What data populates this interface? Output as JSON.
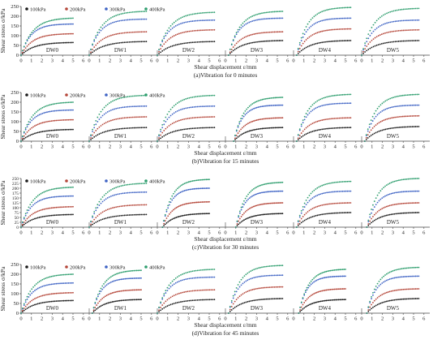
{
  "colors": {
    "100kPa": "#1a1a1a",
    "200kPa": "#b5473a",
    "300kPa": "#3e63c4",
    "400kPa": "#2e9e6e"
  },
  "chart_data": [
    {
      "type": "scatter",
      "ylabel": "Shear stress σ/kPa",
      "xlabel": "Shear displacement ε/mm",
      "caption": "(a)Vibration for 0 minutes",
      "legend": [
        "100kPa",
        "200kPa",
        "300kPa",
        "400kPa"
      ],
      "legend_position": "top-left",
      "ylim": [
        0,
        250
      ],
      "yticks": [
        0,
        50,
        100,
        150,
        200,
        250
      ],
      "xlim": [
        0,
        6
      ],
      "xticks": [
        0,
        1,
        2,
        3,
        4,
        5,
        6
      ],
      "panels": [
        {
          "label": "DW0",
          "offset": 0.0,
          "end": 5.0,
          "peaks": {
            "100kPa": 65,
            "200kPa": 110,
            "300kPa": 160,
            "400kPa": 190
          }
        },
        {
          "label": "DW1",
          "offset": 0.0,
          "end": 5.5,
          "peaks": {
            "100kPa": 70,
            "200kPa": 120,
            "300kPa": 185,
            "400kPa": 225
          }
        },
        {
          "label": "DW2",
          "offset": 0.0,
          "end": 5.5,
          "peaks": {
            "100kPa": 70,
            "200kPa": 130,
            "300kPa": 180,
            "400kPa": 220
          }
        },
        {
          "label": "DW3",
          "offset": 0.3,
          "end": 5.5,
          "peaks": {
            "100kPa": 75,
            "200kPa": 120,
            "300kPa": 190,
            "400kPa": 225
          }
        },
        {
          "label": "DW4",
          "offset": 0.3,
          "end": 5.5,
          "peaks": {
            "100kPa": 75,
            "200kPa": 135,
            "300kPa": 190,
            "400kPa": 245
          }
        },
        {
          "label": "DW5",
          "offset": 0.0,
          "end": 5.5,
          "peaks": {
            "100kPa": 75,
            "200kPa": 130,
            "300kPa": 180,
            "400kPa": 240
          }
        }
      ]
    },
    {
      "type": "scatter",
      "ylabel": "Shear stress σ/kPa",
      "xlabel": "Shear displacement ε/mm",
      "caption": "(b)Vibration for 15 minutes",
      "legend": [
        "100kPa",
        "200kPa",
        "300kPa",
        "400kPa"
      ],
      "legend_position": "top-left",
      "ylim": [
        0,
        250
      ],
      "yticks": [
        0,
        50,
        100,
        150,
        200,
        250
      ],
      "xlim": [
        0,
        6
      ],
      "xticks": [
        0,
        1,
        2,
        3,
        4,
        5,
        6
      ],
      "panels": [
        {
          "label": "DW0",
          "offset": 0.0,
          "end": 5.0,
          "peaks": {
            "100kPa": 60,
            "200kPa": 110,
            "300kPa": 160,
            "400kPa": 200
          }
        },
        {
          "label": "DW1",
          "offset": 0.0,
          "end": 5.5,
          "peaks": {
            "100kPa": 70,
            "200kPa": 125,
            "300kPa": 180,
            "400kPa": 235
          }
        },
        {
          "label": "DW2",
          "offset": 0.0,
          "end": 5.5,
          "peaks": {
            "100kPa": 70,
            "200kPa": 125,
            "300kPa": 180,
            "400kPa": 235
          }
        },
        {
          "label": "DW3",
          "offset": 0.8,
          "end": 5.5,
          "peaks": {
            "100kPa": 70,
            "200kPa": 120,
            "300kPa": 185,
            "400kPa": 225
          }
        },
        {
          "label": "DW4",
          "offset": 0.3,
          "end": 5.5,
          "peaks": {
            "100kPa": 70,
            "200kPa": 120,
            "300kPa": 195,
            "400kPa": 240
          }
        },
        {
          "label": "DW5",
          "offset": 0.3,
          "end": 5.5,
          "peaks": {
            "100kPa": 75,
            "200kPa": 130,
            "300kPa": 185,
            "400kPa": 240
          }
        }
      ]
    },
    {
      "type": "scatter",
      "ylabel": "Shear stress σ/kPa",
      "xlabel": "Shear displacement ε/mm",
      "caption": "(c)Vibration for 30 minutes",
      "legend": [
        "100kPa",
        "200kPa",
        "300kPa",
        "400kPa"
      ],
      "legend_position": "top-left",
      "ylim": [
        0,
        250
      ],
      "yticks": [
        0,
        25,
        50,
        75,
        100,
        125,
        150,
        175,
        200,
        225,
        250
      ],
      "xlim": [
        0,
        6
      ],
      "xticks": [
        0,
        1,
        2,
        3,
        4,
        5,
        6
      ],
      "panels": [
        {
          "label": "DW0",
          "offset": 0.0,
          "end": 5.0,
          "peaks": {
            "100kPa": 65,
            "200kPa": 105,
            "300kPa": 160,
            "400kPa": 205
          }
        },
        {
          "label": "DW1",
          "offset": 0.0,
          "end": 5.5,
          "peaks": {
            "100kPa": 65,
            "200kPa": 115,
            "300kPa": 180,
            "400kPa": 225
          }
        },
        {
          "label": "DW2",
          "offset": 0.5,
          "end": 5.0,
          "peaks": {
            "100kPa": 70,
            "200kPa": 130,
            "300kPa": 200,
            "400kPa": 245
          }
        },
        {
          "label": "DW3",
          "offset": 1.0,
          "end": 5.5,
          "peaks": {
            "100kPa": 70,
            "200kPa": 125,
            "300kPa": 185,
            "400kPa": 230
          }
        },
        {
          "label": "DW4",
          "offset": 0.3,
          "end": 5.5,
          "peaks": {
            "100kPa": 75,
            "200kPa": 125,
            "300kPa": 185,
            "400kPa": 235
          }
        },
        {
          "label": "DW5",
          "offset": 0.5,
          "end": 5.5,
          "peaks": {
            "100kPa": 75,
            "200kPa": 125,
            "300kPa": 185,
            "400kPa": 250
          }
        }
      ]
    },
    {
      "type": "scatter",
      "ylabel": "Shear stress σ/kPa",
      "xlabel": "Shear displacement ε/mm",
      "caption": "(d)Vibration for 45 minutes",
      "legend": [
        "100kPa",
        "200kPa",
        "300kPa",
        "400kPa"
      ],
      "legend_position": "top-left",
      "ylim": [
        0,
        250
      ],
      "yticks": [
        0,
        50,
        100,
        150,
        200,
        250
      ],
      "xlim": [
        0,
        6
      ],
      "xticks": [
        0,
        1,
        2,
        3,
        4,
        5,
        6
      ],
      "panels": [
        {
          "label": "DW0",
          "offset": 0.0,
          "end": 5.0,
          "peaks": {
            "100kPa": 65,
            "200kPa": 105,
            "300kPa": 155,
            "400kPa": 200
          }
        },
        {
          "label": "DW1",
          "offset": 0.3,
          "end": 5.0,
          "peaks": {
            "100kPa": 70,
            "200kPa": 120,
            "300kPa": 180,
            "400kPa": 220
          }
        },
        {
          "label": "DW2",
          "offset": 0.0,
          "end": 5.5,
          "peaks": {
            "100kPa": 70,
            "200kPa": 120,
            "300kPa": 185,
            "400kPa": 225
          }
        },
        {
          "label": "DW3",
          "offset": 0.3,
          "end": 5.5,
          "peaks": {
            "100kPa": 75,
            "200kPa": 135,
            "300kPa": 195,
            "400kPa": 245
          }
        },
        {
          "label": "DW4",
          "offset": 0.5,
          "end": 5.0,
          "peaks": {
            "100kPa": 70,
            "200kPa": 125,
            "300kPa": 190,
            "400kPa": 225
          }
        },
        {
          "label": "DW5",
          "offset": 0.5,
          "end": 5.5,
          "peaks": {
            "100kPa": 75,
            "200kPa": 125,
            "300kPa": 190,
            "400kPa": 235
          }
        }
      ]
    }
  ]
}
